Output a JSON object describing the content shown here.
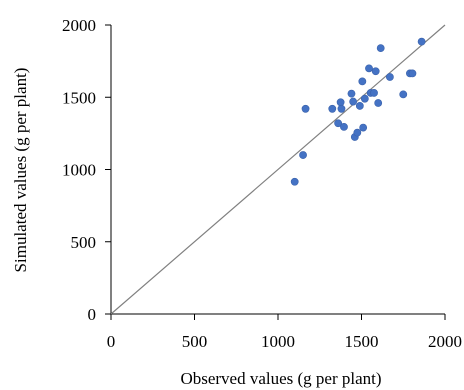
{
  "chart_data": {
    "type": "scatter",
    "title": "",
    "xlabel": "Observed values (g per plant)",
    "ylabel": "Simulated values (g per plant)",
    "xlim": [
      0,
      2000
    ],
    "ylim": [
      0,
      2000
    ],
    "x_ticks": [
      "0",
      "500",
      "1000",
      "1500",
      "2000"
    ],
    "y_ticks": [
      "0",
      "500",
      "1000",
      "1500",
      "2000"
    ],
    "grid": false,
    "legend": "none",
    "reference_line": {
      "type": "1:1",
      "from": [
        0,
        0
      ],
      "to": [
        2000,
        2000
      ],
      "color": "#808080"
    },
    "marker_color": "#4472C4",
    "series": [
      {
        "points": [
          [
            1100,
            915
          ],
          [
            1150,
            1100
          ],
          [
            1165,
            1420
          ],
          [
            1325,
            1420
          ],
          [
            1360,
            1320
          ],
          [
            1375,
            1465
          ],
          [
            1380,
            1420
          ],
          [
            1395,
            1295
          ],
          [
            1440,
            1525
          ],
          [
            1450,
            1470
          ],
          [
            1460,
            1225
          ],
          [
            1475,
            1255
          ],
          [
            1490,
            1440
          ],
          [
            1505,
            1610
          ],
          [
            1510,
            1290
          ],
          [
            1520,
            1490
          ],
          [
            1545,
            1700
          ],
          [
            1555,
            1530
          ],
          [
            1575,
            1530
          ],
          [
            1585,
            1680
          ],
          [
            1600,
            1460
          ],
          [
            1615,
            1840
          ],
          [
            1670,
            1640
          ],
          [
            1750,
            1520
          ],
          [
            1790,
            1665
          ],
          [
            1805,
            1665
          ],
          [
            1860,
            1885
          ]
        ]
      }
    ]
  }
}
